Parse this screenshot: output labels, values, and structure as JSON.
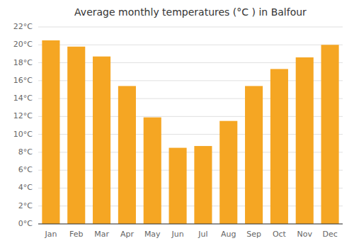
{
  "chart_data": {
    "type": "bar",
    "title": "Average monthly temperatures (°C ) in Balfour",
    "categories": [
      "Jan",
      "Feb",
      "Mar",
      "Apr",
      "May",
      "Jun",
      "Jul",
      "Aug",
      "Sep",
      "Oct",
      "Nov",
      "Dec"
    ],
    "values": [
      20.5,
      19.8,
      18.7,
      15.4,
      11.9,
      8.5,
      8.7,
      11.5,
      15.4,
      17.3,
      18.6,
      20.0
    ],
    "color": "#F5A623",
    "ylim": [
      0,
      22
    ],
    "yticks": [
      {
        "value": 0,
        "label": "0°C"
      },
      {
        "value": 2,
        "label": "2°C"
      },
      {
        "value": 4,
        "label": "4°C"
      },
      {
        "value": 6,
        "label": "6°C"
      },
      {
        "value": 8,
        "label": "8°C"
      },
      {
        "value": 10,
        "label": "10°C"
      },
      {
        "value": 12,
        "label": "12°C"
      },
      {
        "value": 14,
        "label": "14°C"
      },
      {
        "value": 16,
        "label": "16°C"
      },
      {
        "value": 18,
        "label": "18°C"
      },
      {
        "value": 20,
        "label": "20°C"
      },
      {
        "value": 22,
        "label": "22°C"
      }
    ],
    "grid": true
  }
}
